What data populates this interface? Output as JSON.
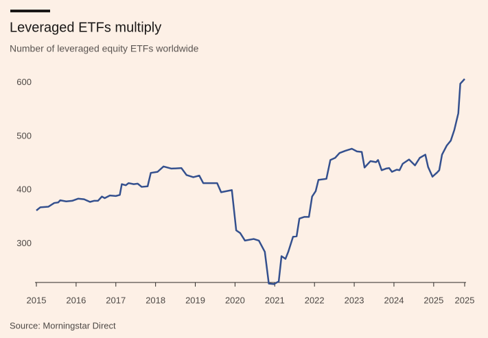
{
  "chart_data": {
    "type": "line",
    "title": "Leveraged ETFs multiply",
    "subtitle": "Number of leveraged equity ETFs worldwide",
    "source": "Source: Morningstar Direct",
    "x": [
      2015,
      2015.1,
      2015.3,
      2015.45,
      2015.55,
      2015.6,
      2015.75,
      2015.9,
      2016.05,
      2016.2,
      2016.35,
      2016.45,
      2016.55,
      2016.65,
      2016.72,
      2016.85,
      2017,
      2017.1,
      2017.15,
      2017.25,
      2017.32,
      2017.45,
      2017.55,
      2017.65,
      2017.8,
      2017.88,
      2018.05,
      2018.2,
      2018.4,
      2018.65,
      2018.78,
      2018.95,
      2019.1,
      2019.2,
      2019.55,
      2019.65,
      2019.92,
      2020.03,
      2020.13,
      2020.25,
      2020.47,
      2020.6,
      2020.75,
      2020.85,
      2020.98,
      2021.1,
      2021.17,
      2021.27,
      2021.34,
      2021.46,
      2021.55,
      2021.62,
      2021.74,
      2021.86,
      2021.94,
      2022.03,
      2022.1,
      2022.3,
      2022.4,
      2022.52,
      2022.63,
      2022.77,
      2022.94,
      2023.07,
      2023.19,
      2023.26,
      2023.41,
      2023.55,
      2023.6,
      2023.69,
      2023.8,
      2023.88,
      2023.95,
      2024.07,
      2024.14,
      2024.22,
      2024.38,
      2024.53,
      2024.65,
      2024.79,
      2024.86,
      2024.97,
      2025.09,
      2025.14,
      2025.21,
      2025.33,
      2025.43,
      2025.52,
      2025.62,
      2025.67,
      2025.78
    ],
    "series": [
      {
        "color": "#34508e",
        "values": [
          362,
          368,
          369,
          376,
          377,
          381,
          379,
          380,
          384,
          383,
          378,
          380,
          380,
          388,
          385,
          390,
          389,
          391,
          411,
          409,
          413,
          411,
          412,
          406,
          407,
          432,
          434,
          444,
          440,
          441,
          428,
          424,
          427,
          413,
          413,
          396,
          400,
          325,
          320,
          306,
          309,
          306,
          285,
          226,
          225,
          230,
          277,
          272,
          285,
          313,
          314,
          347,
          350,
          350,
          388,
          398,
          419,
          421,
          456,
          460,
          469,
          473,
          477,
          472,
          471,
          442,
          454,
          452,
          456,
          437,
          440,
          441,
          434,
          438,
          437,
          449,
          457,
          446,
          460,
          466,
          443,
          425,
          433,
          437,
          466,
          483,
          492,
          512,
          543,
          598,
          607
        ]
      }
    ],
    "xlim": [
      2015,
      2025.78
    ],
    "xticks": [
      2015,
      2016,
      2017,
      2018,
      2019,
      2020,
      2021,
      2022,
      2023,
      2024,
      2025,
      {
        "value": 2025.78,
        "label": "2025"
      }
    ],
    "ylim": [
      228,
      625
    ],
    "yticks": [
      300,
      400,
      500,
      600
    ]
  }
}
